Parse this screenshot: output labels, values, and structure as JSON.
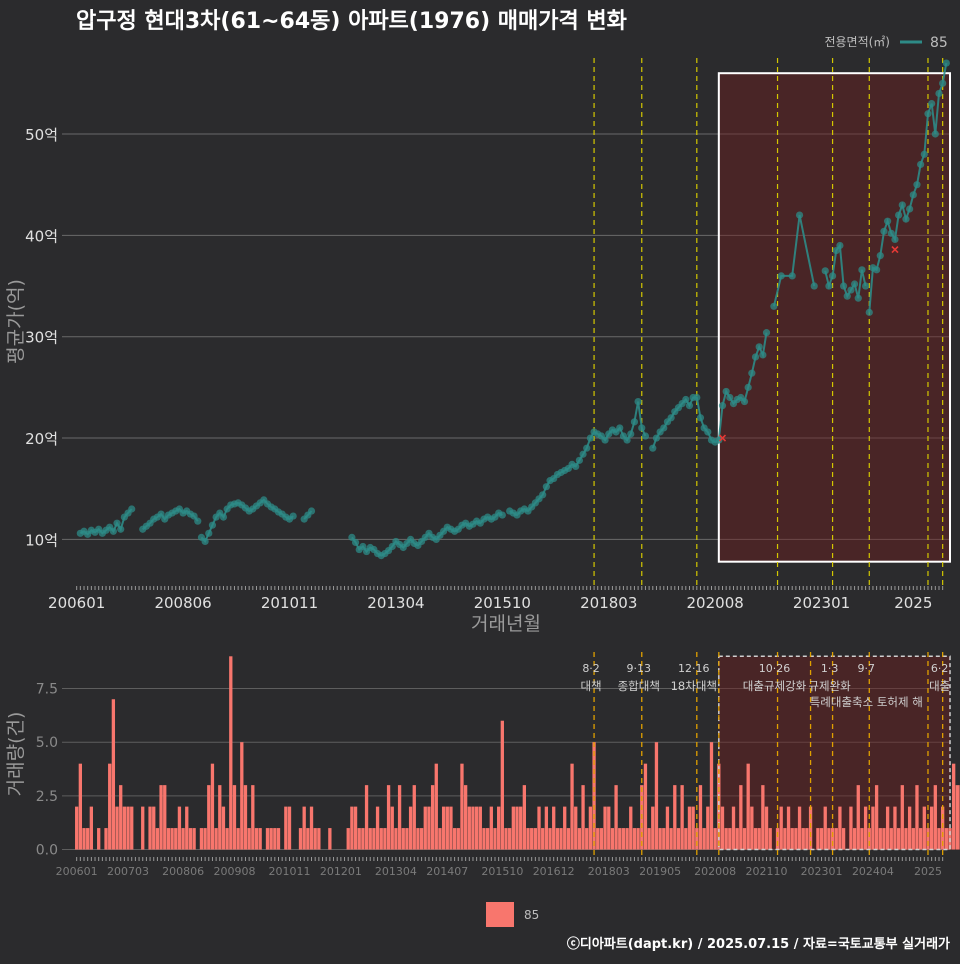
{
  "title": "압구정 현대3차(61~64동) 아파트(1976) 매매가격 변화",
  "legend_top": {
    "title": "전용면적(㎡)",
    "entry": "85",
    "color": "#2e8b87"
  },
  "legend_bottom": {
    "entry": "85",
    "color": "#f8766d"
  },
  "footer": "ⓒ디아파트(dapt.kr) / 2025.07.15 / 자료=국토교통부 실거래가",
  "chart_data": [
    {
      "type": "line",
      "name": "price",
      "title": "압구정 현대3차(61~64동) 아파트(1976) 매매가격 변화",
      "xlabel": "거래년월",
      "ylabel": "평균가(억)",
      "x_unit": "months since 2006-01",
      "xlim": [
        -4,
        238
      ],
      "ylim": [
        5.5,
        57.5
      ],
      "yticks": [
        10,
        20,
        30,
        40,
        50
      ],
      "ytick_labels": [
        "10억",
        "20억",
        "30억",
        "40억",
        "50억"
      ],
      "xticks": [
        0,
        29,
        58,
        87,
        116,
        145,
        174,
        203,
        228
      ],
      "xtick_labels": [
        "200601",
        "200806",
        "201011",
        "201304",
        "201510",
        "201803",
        "202008",
        "202301",
        "2025"
      ],
      "vlines": [
        141,
        154,
        169,
        191,
        206,
        216,
        232,
        236
      ],
      "highlight": {
        "x": [
          175,
          238
        ],
        "y": [
          7.8,
          56
        ]
      },
      "series": [
        {
          "name": "85",
          "x": [
            1,
            2,
            3,
            4,
            5,
            6,
            7,
            8,
            9,
            10,
            11,
            12,
            13,
            14,
            15
          ],
          "y": [
            10.6,
            10.8,
            10.5,
            10.9,
            10.7,
            11.0,
            10.6,
            10.9,
            11.2,
            10.8,
            11.6,
            11.0,
            12.2,
            12.6,
            13.0
          ]
        },
        {
          "name": "85",
          "x": [
            18,
            19,
            20,
            21,
            22,
            23,
            24,
            25,
            26,
            27,
            28,
            29,
            30,
            31,
            32,
            33
          ],
          "y": [
            11.0,
            11.3,
            11.6,
            12.0,
            12.2,
            12.5,
            12.0,
            12.4,
            12.6,
            12.8,
            13.0,
            12.6,
            12.8,
            12.5,
            12.3,
            11.8
          ]
        },
        {
          "name": "85",
          "x": [
            34,
            35,
            36,
            37,
            38,
            39,
            40,
            41,
            42,
            43,
            44,
            45,
            46,
            47,
            48,
            49,
            50,
            51,
            52,
            53,
            54,
            55,
            56,
            57,
            58,
            59
          ],
          "y": [
            10.2,
            9.8,
            10.6,
            11.4,
            12.2,
            12.6,
            12.2,
            13.0,
            13.4,
            13.5,
            13.6,
            13.4,
            13.1,
            12.8,
            13.0,
            13.3,
            13.6,
            13.9,
            13.5,
            13.2,
            13.0,
            12.7,
            12.5,
            12.2,
            12.0,
            12.3
          ]
        },
        {
          "name": "85",
          "x": [
            62,
            63,
            64
          ],
          "y": [
            12.0,
            12.4,
            12.8
          ]
        },
        {
          "name": "85",
          "x": [
            75,
            76,
            77,
            78,
            79,
            80,
            81,
            82,
            83,
            84,
            85,
            86,
            87,
            88,
            89,
            90,
            91,
            92,
            93,
            94,
            95,
            96,
            97,
            98,
            99,
            100,
            101,
            102,
            103,
            104,
            105,
            106,
            107,
            108,
            109,
            110,
            111,
            112,
            113,
            114,
            115,
            116
          ],
          "y": [
            10.2,
            9.7,
            9.0,
            9.3,
            8.8,
            9.2,
            9.0,
            8.6,
            8.4,
            8.6,
            8.9,
            9.3,
            9.8,
            9.5,
            9.2,
            9.6,
            10.0,
            9.6,
            9.4,
            9.8,
            10.2,
            10.6,
            10.2,
            10.0,
            10.4,
            10.8,
            11.2,
            11.0,
            10.8,
            11.0,
            11.4,
            11.6,
            11.3,
            11.5,
            11.8,
            11.6,
            12.0,
            12.2,
            12.0,
            12.2,
            12.6,
            12.4
          ]
        },
        {
          "name": "85",
          "x": [
            118,
            119,
            120,
            121,
            122,
            123,
            124,
            125,
            126,
            127,
            128,
            129,
            130,
            131,
            132,
            133,
            134,
            135,
            136,
            137,
            138,
            139,
            140,
            141,
            142,
            143,
            144,
            145,
            146,
            147,
            148,
            149,
            150,
            151,
            152,
            153,
            154,
            155
          ],
          "y": [
            12.8,
            12.6,
            12.4,
            12.8,
            13.0,
            12.8,
            13.2,
            13.6,
            14.0,
            14.4,
            15.2,
            15.8,
            16.0,
            16.4,
            16.6,
            16.8,
            17.0,
            17.4,
            17.2,
            17.8,
            18.4,
            19.0,
            20.0,
            20.6,
            20.4,
            20.2,
            19.8,
            20.4,
            20.8,
            20.6,
            21.0,
            20.2,
            19.8,
            20.4,
            21.6,
            23.6,
            21.0,
            20.2
          ]
        },
        {
          "name": "85",
          "x": [
            157,
            158,
            159,
            160,
            161,
            162,
            163,
            164,
            165,
            166,
            167,
            168,
            169,
            170,
            171,
            172,
            173,
            174,
            175,
            176,
            177,
            178,
            179,
            180,
            181,
            182,
            183,
            184,
            185,
            186,
            187,
            188
          ],
          "y": [
            19.0,
            20.0,
            20.6,
            21.0,
            21.6,
            22.0,
            22.6,
            23.0,
            23.4,
            23.8,
            23.2,
            24.0,
            24.0,
            22.0,
            21.0,
            20.6,
            19.8,
            19.6,
            19.8,
            23.2,
            24.6,
            24.0,
            23.4,
            23.8,
            24.0,
            23.6,
            25.0,
            26.4,
            28.0,
            29.0,
            28.2,
            30.4
          ]
        },
        {
          "name": "85",
          "x": [
            190,
            192,
            195,
            197,
            201
          ],
          "y": [
            33.0,
            36.0,
            36.0,
            42.0,
            35.0
          ]
        },
        {
          "name": "85",
          "x": [
            204,
            205,
            206,
            207,
            208,
            209,
            210,
            211,
            212,
            213,
            214,
            215
          ],
          "y": [
            36.5,
            35.0,
            36.0,
            38.5,
            39.0,
            35.0,
            34.0,
            34.6,
            35.2,
            33.8,
            36.6,
            35.0
          ]
        },
        {
          "name": "85",
          "x": [
            216,
            217,
            218,
            219,
            220,
            221,
            222,
            223,
            224,
            225,
            226,
            227,
            228,
            229,
            230,
            231,
            232,
            233,
            234,
            235,
            236,
            237
          ],
          "y": [
            32.4,
            36.8,
            36.6,
            38.0,
            40.4,
            41.4,
            40.2,
            39.6,
            42.0,
            43.0,
            41.6,
            42.6,
            44.0,
            45.0,
            47.0,
            48.0,
            52.0,
            53.0,
            50.0,
            54.0,
            55.0,
            57.0
          ]
        }
      ],
      "markers": [
        {
          "x": 176,
          "y": 20.0
        },
        {
          "x": 223,
          "y": 38.6
        }
      ]
    },
    {
      "type": "bar",
      "name": "volume",
      "xlabel": "",
      "ylabel": "거래량(건)",
      "x_unit": "months since 2006-01",
      "xlim": [
        -4,
        238
      ],
      "ylim": [
        -0.3,
        9.2
      ],
      "yticks": [
        0,
        2.5,
        5,
        7.5
      ],
      "ytick_labels": [
        "0.0",
        "2.5",
        "5.0",
        "7.5"
      ],
      "xticks": [
        0,
        14,
        29,
        43,
        58,
        72,
        87,
        101,
        116,
        130,
        145,
        159,
        174,
        188,
        203,
        217,
        232
      ],
      "xtick_labels": [
        "200601",
        "200703",
        "200806",
        "200908",
        "201011",
        "201201",
        "201304",
        "201407",
        "201510",
        "201612",
        "201803",
        "201905",
        "202008",
        "202110",
        "202301",
        "202404",
        "2025"
      ],
      "vlines": [
        141,
        154,
        169,
        175,
        191,
        200,
        206,
        216,
        232,
        236
      ],
      "highlight": {
        "x": [
          175,
          238
        ],
        "y": [
          0,
          9
        ]
      },
      "series": [
        {
          "name": "85",
          "values": [
            2,
            4,
            1,
            1,
            2,
            0,
            1,
            0,
            1,
            4,
            7,
            2,
            3,
            2,
            2,
            2,
            0,
            0,
            2,
            0,
            2,
            2,
            1,
            3,
            3,
            1,
            1,
            1,
            2,
            1,
            2,
            1,
            1,
            0,
            1,
            1,
            3,
            4,
            1,
            3,
            2,
            1,
            9,
            3,
            1,
            5,
            3,
            1,
            3,
            1,
            1,
            0,
            1,
            1,
            1,
            1,
            0,
            2,
            2,
            0,
            0,
            1,
            2,
            1,
            2,
            1,
            1,
            0,
            0,
            1,
            0,
            0,
            0,
            0,
            1,
            2,
            2,
            1,
            1,
            3,
            1,
            1,
            2,
            1,
            1,
            3,
            2,
            1,
            3,
            1,
            1,
            2,
            3,
            1,
            1,
            2,
            2,
            3,
            4,
            1,
            2,
            2,
            2,
            1,
            1,
            4,
            3,
            2,
            2,
            2,
            2,
            1,
            1,
            2,
            1,
            2,
            6,
            1,
            1,
            2,
            2,
            2,
            3,
            1,
            1,
            1,
            2,
            1,
            2,
            1,
            2,
            1,
            1,
            2,
            1,
            4,
            2,
            1,
            3,
            1,
            2,
            5,
            1,
            1,
            2,
            2,
            1,
            3,
            1,
            1,
            1,
            2,
            1,
            1,
            3,
            4,
            1,
            2,
            5,
            1,
            1,
            2,
            1,
            3,
            1,
            3,
            1,
            2,
            2,
            1,
            3,
            1,
            2,
            5,
            1,
            4,
            2,
            1,
            1,
            2,
            1,
            3,
            1,
            4,
            2,
            1,
            1,
            3,
            2,
            1,
            0,
            1,
            2,
            1,
            2,
            1,
            1,
            2,
            1,
            1,
            2,
            0,
            1,
            1,
            2,
            1,
            1,
            1,
            2,
            1,
            0,
            2,
            1,
            3,
            1,
            2,
            1,
            2,
            3,
            1,
            1,
            2,
            1,
            2,
            1,
            3,
            1,
            2,
            1,
            3,
            1,
            2,
            1,
            2,
            3,
            1,
            2,
            1,
            1,
            4,
            3,
            3
          ]
        }
      ],
      "annotations": [
        {
          "x": 141,
          "date": "8·2",
          "label": "대책"
        },
        {
          "x": 154,
          "date": "9·13",
          "label": "종합대책"
        },
        {
          "x": 169,
          "date": "12·16",
          "label": "18차대책"
        },
        {
          "x": 191,
          "date": "10·26",
          "label": "대출규제강화"
        },
        {
          "x": 206,
          "date": "1·3",
          "label": "규제완화"
        },
        {
          "x": 216,
          "date": "9·7",
          "label": "특례대출축소 토허제 해"
        },
        {
          "x": 236,
          "date": "6·2",
          "label": "대출"
        }
      ]
    }
  ]
}
